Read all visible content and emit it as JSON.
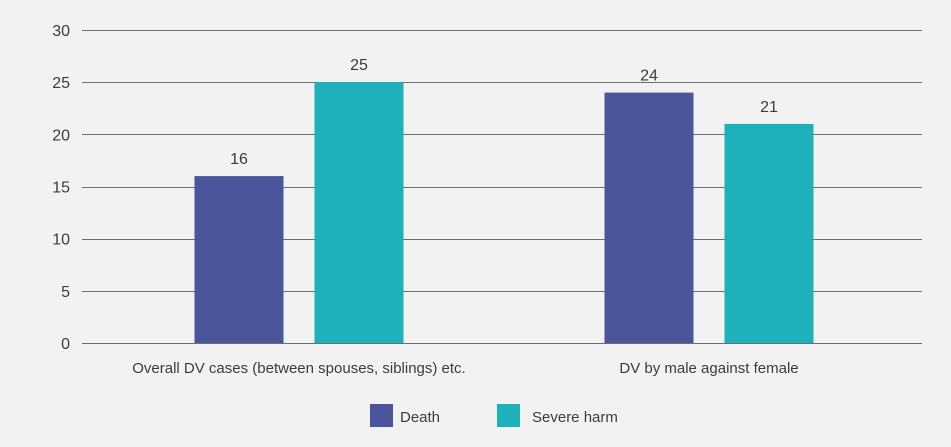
{
  "chart_data": {
    "type": "bar",
    "title": "",
    "xlabel": "",
    "ylabel": "",
    "categories": [
      "Overall DV cases (between spouses, siblings) etc.",
      "DV by male against female"
    ],
    "series": [
      {
        "name": "Death",
        "values": [
          16,
          24
        ],
        "color": "#4b559c"
      },
      {
        "name": "Severe harm",
        "values": [
          25,
          21
        ],
        "color": "#1db2ba"
      }
    ],
    "ylim": [
      0,
      30
    ],
    "yticks": [
      0,
      5,
      10,
      15,
      20,
      25,
      30
    ],
    "grid": true,
    "legend_position": "bottom-center",
    "data_labels": true
  }
}
